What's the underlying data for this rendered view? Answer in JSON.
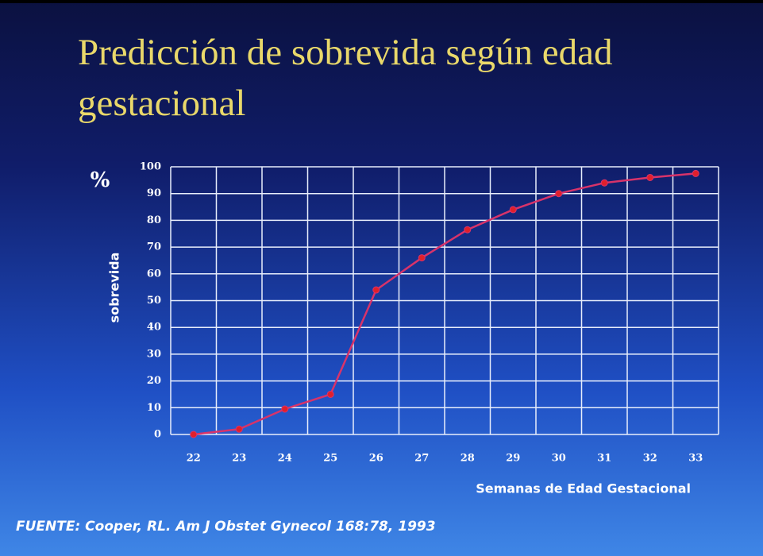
{
  "chart_data": {
    "type": "line",
    "title": "Predicción de sobrevida según edad gestacional",
    "y_unit": "%",
    "y_label": "sobrevida",
    "x_label": "Semanas de Edad Gestacional",
    "source": "FUENTE: Cooper, RL. Am J Obstet Gynecol 168:78, 1993",
    "categories": [
      "22",
      "23",
      "24",
      "25",
      "26",
      "27",
      "28",
      "29",
      "30",
      "31",
      "32",
      "33"
    ],
    "series": [
      {
        "name": "sobrevida",
        "color": "#d8336a",
        "values": [
          0,
          2,
          9.5,
          15,
          54,
          66,
          76.5,
          84,
          90,
          94,
          96,
          97.5
        ]
      }
    ],
    "ylim": [
      0,
      100
    ],
    "yticks": [
      0,
      10,
      20,
      30,
      40,
      50,
      60,
      70,
      80,
      90,
      100
    ],
    "grid": true
  }
}
